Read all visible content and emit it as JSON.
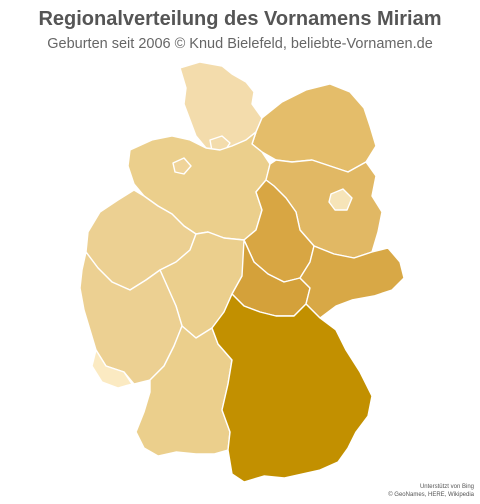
{
  "header": {
    "title": "Regionalverteilung des Vornamens Miriam",
    "subtitle": "Geburten seit 2006  © Knud Bielefeld, beliebte-Vornamen.de"
  },
  "attribution": {
    "line1": "Unterstützt von Bing",
    "line2": "© GeoNames, HERE, Wikipedia"
  },
  "map": {
    "states": [
      {
        "key": "sh",
        "name": "Schleswig-Holstein",
        "color": "#f3dcac"
      },
      {
        "key": "hh",
        "name": "Hamburg",
        "color": "#f3dcac"
      },
      {
        "key": "mv",
        "name": "Mecklenburg-Vorpommern",
        "color": "#e4bd6a"
      },
      {
        "key": "hb",
        "name": "Bremen",
        "color": "#f0d49a"
      },
      {
        "key": "ni",
        "name": "Niedersachsen",
        "color": "#ebcf8c"
      },
      {
        "key": "bb",
        "name": "Brandenburg",
        "color": "#e1b864"
      },
      {
        "key": "be",
        "name": "Berlin",
        "color": "#f6e4b8"
      },
      {
        "key": "st",
        "name": "Sachsen-Anhalt",
        "color": "#d8a643"
      },
      {
        "key": "nw",
        "name": "Nordrhein-Westfalen",
        "color": "#ecd092"
      },
      {
        "key": "he",
        "name": "Hessen",
        "color": "#ebcf8d"
      },
      {
        "key": "th",
        "name": "Thüringen",
        "color": "#d4a13a"
      },
      {
        "key": "sn",
        "name": "Sachsen",
        "color": "#d8a846"
      },
      {
        "key": "rp",
        "name": "Rheinland-Pfalz",
        "color": "#ecd092"
      },
      {
        "key": "sl",
        "name": "Saarland",
        "color": "#fbeac2"
      },
      {
        "key": "bw",
        "name": "Baden-Württemberg",
        "color": "#ebcf8c"
      },
      {
        "key": "by",
        "name": "Bayern",
        "color": "#c29000"
      }
    ]
  }
}
